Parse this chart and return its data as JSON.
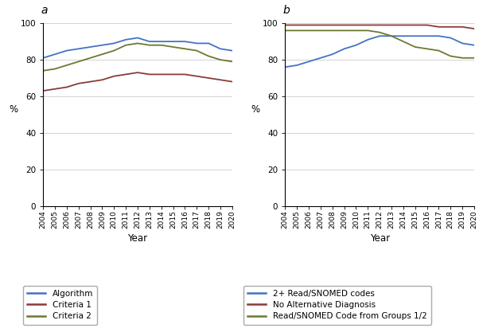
{
  "years": [
    2004,
    2005,
    2006,
    2007,
    2008,
    2009,
    2010,
    2011,
    2012,
    2013,
    2014,
    2015,
    2016,
    2017,
    2018,
    2019,
    2020
  ],
  "panel_a": {
    "algorithm": [
      81,
      83,
      85,
      86,
      87,
      88,
      89,
      91,
      92,
      90,
      90,
      90,
      90,
      89,
      89,
      86,
      85
    ],
    "criteria1": [
      63,
      64,
      65,
      67,
      68,
      69,
      71,
      72,
      73,
      72,
      72,
      72,
      72,
      71,
      70,
      69,
      68
    ],
    "criteria2": [
      74,
      75,
      77,
      79,
      81,
      83,
      85,
      88,
      89,
      88,
      88,
      87,
      86,
      85,
      82,
      80,
      79
    ]
  },
  "panel_b": {
    "read_snomed": [
      76,
      77,
      79,
      81,
      83,
      86,
      88,
      91,
      93,
      93,
      93,
      93,
      93,
      93,
      92,
      89,
      88
    ],
    "no_alt_diagnosis": [
      99,
      99,
      99,
      99,
      99,
      99,
      99,
      99,
      99,
      99,
      99,
      99,
      99,
      98,
      98,
      98,
      97
    ],
    "snomed_groups12": [
      96,
      96,
      96,
      96,
      96,
      96,
      96,
      96,
      95,
      93,
      90,
      87,
      86,
      85,
      82,
      81,
      81
    ]
  },
  "colors_a": {
    "algorithm": "#4472C4",
    "criteria1": "#8B3A3A",
    "criteria2": "#6B7A2E"
  },
  "colors_b": {
    "read_snomed": "#4472C4",
    "no_alt_diagnosis": "#8B3A3A",
    "snomed_groups12": "#6B7A2E"
  },
  "ylim": [
    0,
    100
  ],
  "yticks": [
    0,
    20,
    40,
    60,
    80,
    100
  ],
  "ylabel": "%",
  "xlabel": "Year",
  "panel_a_label": "a",
  "panel_b_label": "b",
  "legend_a": [
    "Algorithm",
    "Criteria 1",
    "Criteria 2"
  ],
  "legend_b": [
    "2+ Read/SNOMED codes",
    "No Alternative Diagnosis",
    "Read/SNOMED Code from Groups 1/2"
  ],
  "background_color": "#ffffff",
  "grid_color": "#cccccc",
  "linewidth": 1.3
}
